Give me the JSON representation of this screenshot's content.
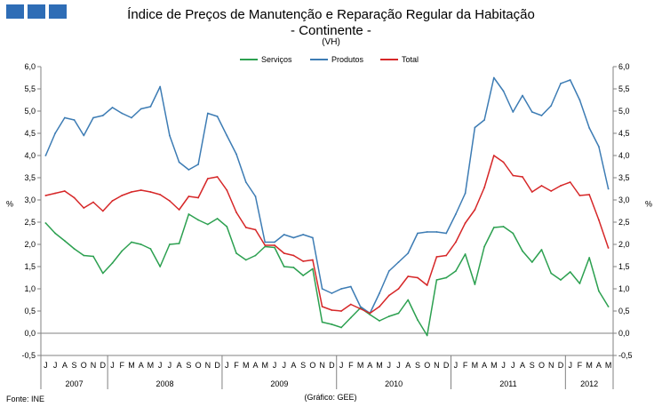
{
  "header": {
    "title": "Índice de Preços de Manutenção e Reparação Regular da Habitação",
    "subtitle": "- Continente -",
    "note": "(VH)"
  },
  "footer": {
    "source": "Fonte: INE",
    "credit": "(Gráfico: GEE)"
  },
  "colors": {
    "servicos": "#2ca050",
    "produtos": "#3d7cb4",
    "total": "#d62728",
    "logo": "#2e6db6"
  },
  "chart_data": {
    "type": "line",
    "title": "Índice de Preços de Manutenção e Reparação Regular da Habitação",
    "ylabel_left": "%",
    "ylabel_right": "%",
    "ylim": [
      -0.5,
      6.0
    ],
    "yticks": [
      "-0,5",
      "0,0",
      "0,5",
      "1,0",
      "1,5",
      "2,0",
      "2,5",
      "3,0",
      "3,5",
      "4,0",
      "4,5",
      "5,0",
      "5,5",
      "6,0"
    ],
    "month_labels": [
      "J",
      "J",
      "A",
      "S",
      "O",
      "N",
      "D",
      "J",
      "F",
      "M",
      "A",
      "M",
      "J",
      "J",
      "A",
      "S",
      "O",
      "N",
      "D",
      "J",
      "F",
      "M",
      "A",
      "M",
      "J",
      "J",
      "A",
      "S",
      "O",
      "N",
      "D",
      "J",
      "F",
      "M",
      "A",
      "M",
      "J",
      "J",
      "A",
      "S",
      "O",
      "N",
      "D",
      "J",
      "F",
      "M",
      "A",
      "M",
      "J",
      "J",
      "A",
      "S",
      "O",
      "N",
      "D",
      "J",
      "F",
      "M",
      "A",
      "M"
    ],
    "year_labels": [
      {
        "label": "2007",
        "start": 0,
        "end": 7
      },
      {
        "label": "2008",
        "start": 7,
        "end": 19
      },
      {
        "label": "2009",
        "start": 19,
        "end": 31
      },
      {
        "label": "2010",
        "start": 31,
        "end": 43
      },
      {
        "label": "2011",
        "start": 43,
        "end": 55
      },
      {
        "label": "2012",
        "start": 55,
        "end": 60
      }
    ],
    "legend": [
      "Serviços",
      "Produtos",
      "Total"
    ],
    "legend_position": "top-center",
    "series": [
      {
        "name": "Serviços",
        "values": [
          2.48,
          2.25,
          2.08,
          1.9,
          1.75,
          1.73,
          1.35,
          1.58,
          1.85,
          2.05,
          2.0,
          1.9,
          1.5,
          2.0,
          2.02,
          2.68,
          2.55,
          2.45,
          2.58,
          2.4,
          1.8,
          1.65,
          1.75,
          1.95,
          1.93,
          1.5,
          1.48,
          1.3,
          1.45,
          0.25,
          0.2,
          0.13,
          0.35,
          0.57,
          0.42,
          0.28,
          0.38,
          0.45,
          0.75,
          0.3,
          -0.05,
          1.2,
          1.25,
          1.4,
          1.78,
          1.1,
          1.95,
          2.38,
          2.4,
          2.25,
          1.85,
          1.6,
          1.88,
          1.35,
          1.2,
          1.38,
          1.12,
          1.7,
          0.95,
          0.6
        ]
      },
      {
        "name": "Produtos",
        "values": [
          4.0,
          4.5,
          4.85,
          4.8,
          4.45,
          4.85,
          4.9,
          5.08,
          4.95,
          4.85,
          5.05,
          5.1,
          5.55,
          4.45,
          3.85,
          3.68,
          3.8,
          4.95,
          4.88,
          4.45,
          4.03,
          3.4,
          3.08,
          2.05,
          2.05,
          2.22,
          2.15,
          2.22,
          2.15,
          1.0,
          0.9,
          1.0,
          1.05,
          0.6,
          0.45,
          0.9,
          1.4,
          1.6,
          1.8,
          2.25,
          2.28,
          2.28,
          2.25,
          2.68,
          3.15,
          4.63,
          4.8,
          5.75,
          5.45,
          4.98,
          5.35,
          4.98,
          4.9,
          5.12,
          5.62,
          5.7,
          5.25,
          4.62,
          4.2,
          3.25
        ]
      },
      {
        "name": "Total",
        "values": [
          3.1,
          3.15,
          3.2,
          3.05,
          2.82,
          2.95,
          2.75,
          2.98,
          3.1,
          3.18,
          3.22,
          3.18,
          3.12,
          2.98,
          2.78,
          3.08,
          3.05,
          3.48,
          3.52,
          3.22,
          2.72,
          2.38,
          2.33,
          1.98,
          1.98,
          1.8,
          1.75,
          1.62,
          1.65,
          0.6,
          0.52,
          0.5,
          0.65,
          0.55,
          0.45,
          0.6,
          0.85,
          1.0,
          1.28,
          1.25,
          1.08,
          1.72,
          1.75,
          2.05,
          2.48,
          2.78,
          3.28,
          4.0,
          3.85,
          3.55,
          3.52,
          3.18,
          3.32,
          3.2,
          3.32,
          3.4,
          3.1,
          3.12,
          2.55,
          1.92
        ]
      }
    ]
  }
}
